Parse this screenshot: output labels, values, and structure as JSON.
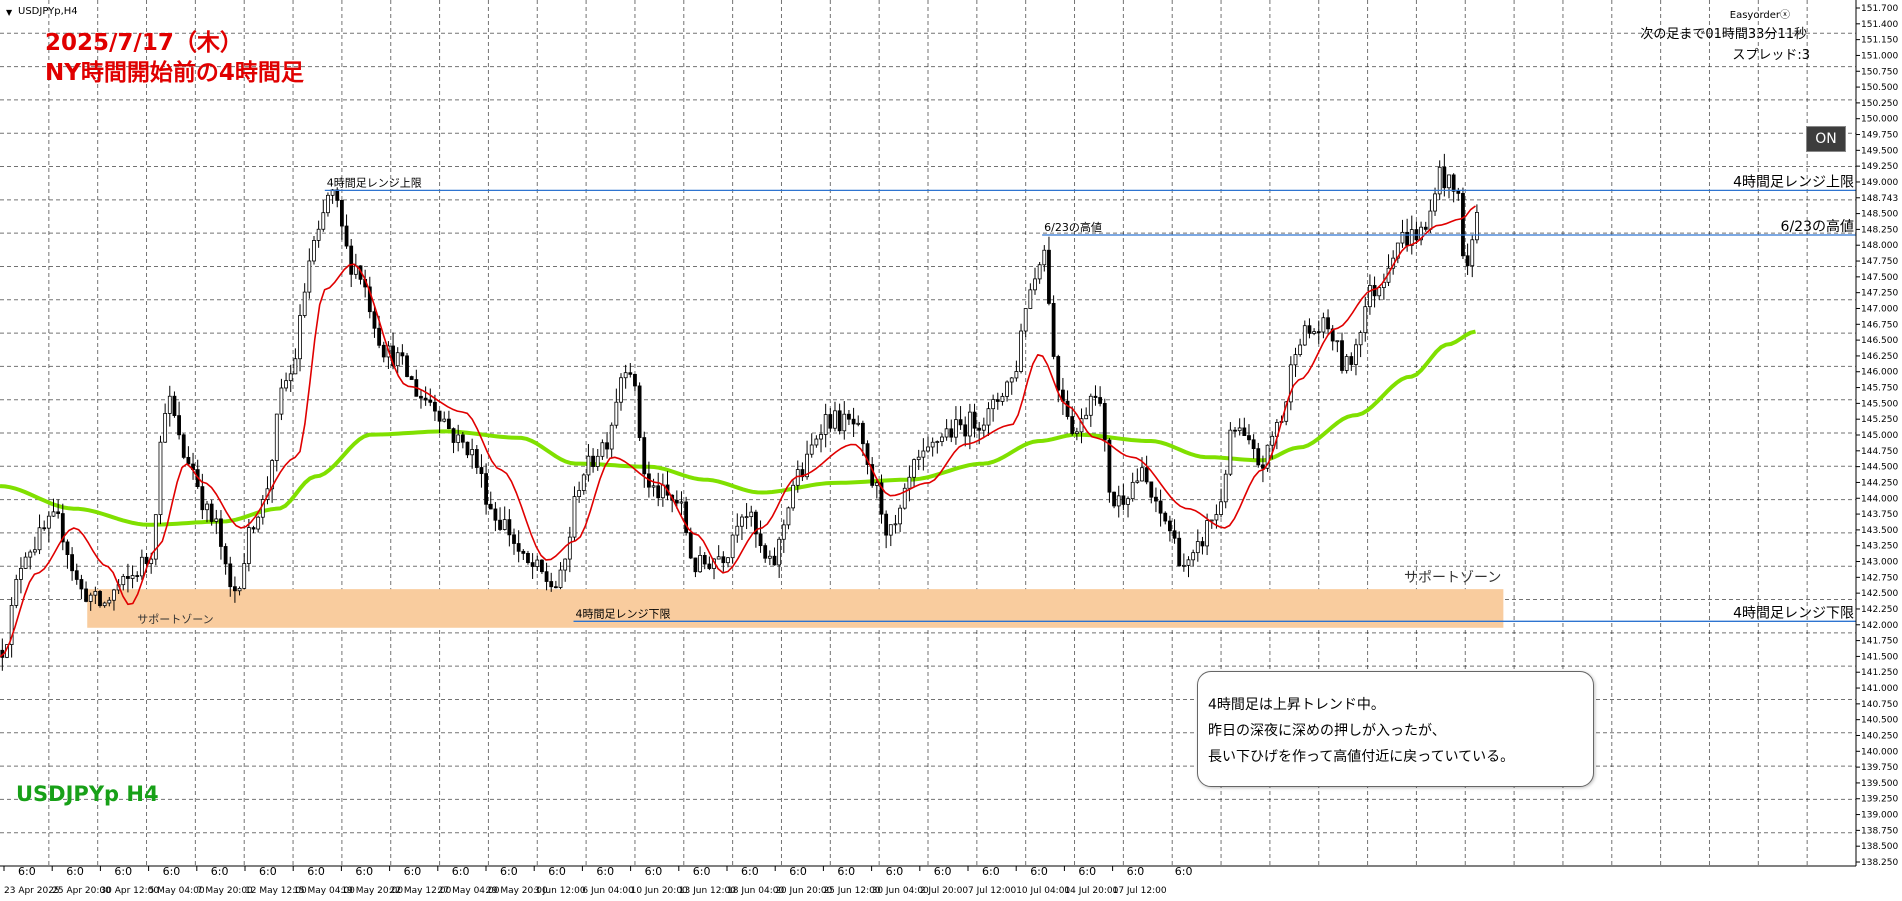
{
  "symbol_label": "USDJPYp,H4",
  "symbol_big": "USDJPYp H4",
  "title": {
    "line1": "2025/7/17（木）",
    "line2": "NY時間開始前の4時間足"
  },
  "easyorder_label": "Easyorderⓧ",
  "countdown_text": "次の足まで01時間33分11秒",
  "spread_text": "スプレッド:3",
  "on_button_label": "ON",
  "comment": {
    "lines": [
      "4時間足は上昇トレンド中。",
      "昨日の深夜に深めの押しが入ったが、",
      "長い下ひげを作って高値付近に戻っていている。"
    ]
  },
  "colors": {
    "background": "#ffffff",
    "grid": "#000000",
    "candle": "#000000",
    "ma_fast": "#e00000",
    "ma_slow": "#80e000",
    "hline": "#2e74d0",
    "zone": "#f9cc9e",
    "title": "#e00000",
    "symbol": "#18a018"
  },
  "chart_data": {
    "type": "candlestick",
    "symbol": "USDJPYp",
    "timeframe": "H4",
    "ylim": [
      138.25,
      151.7
    ],
    "x_tick_labels": [
      "23 Apr 2025",
      "25 Apr 20:00",
      "30 Apr 12:00",
      "5 May 04:00",
      "7 May 20:00",
      "12 May 12:00",
      "15 May 04:00",
      "19 May 20:00",
      "22 May 12:00",
      "27 May 04:00",
      "29 May 20:00",
      "3 Jun 12:00",
      "6 Jun 04:00",
      "10 Jun 20:00",
      "13 Jun 12:00",
      "18 Jun 04:00",
      "20 Jun 20:00",
      "25 Jun 12:00",
      "30 Jun 04:00",
      "2 Jul 20:00",
      "7 Jul 12:00",
      "10 Jul 04:00",
      "14 Jul 20:00",
      "17 Jul 12:00"
    ],
    "x_tick_hours": [
      "6:0",
      "6:0",
      "6:0",
      "6:0",
      "6:0",
      "6:0",
      "6:0",
      "6:0",
      "6:0",
      "6:0",
      "6:0",
      "6:0",
      "6:0",
      "6:0",
      "6:0",
      "6:0",
      "6:0",
      "6:0",
      "6:0",
      "6:0",
      "6:0",
      "6:0",
      "6:0",
      "6:0",
      "6:0"
    ],
    "y_tick_labels": [
      "151.700",
      "151.400",
      "151.150",
      "151.000",
      "150.750",
      "150.500",
      "150.250",
      "150.000",
      "149.750",
      "149.500",
      "149.250",
      "149.000",
      "148.743",
      "148.500",
      "148.250",
      "148.000",
      "147.750",
      "147.500",
      "147.250",
      "147.000",
      "146.750",
      "146.500",
      "146.250",
      "146.000",
      "145.750",
      "145.500",
      "145.250",
      "145.000",
      "144.750",
      "144.500",
      "144.250",
      "144.000",
      "143.750",
      "143.500",
      "143.250",
      "143.000",
      "142.750",
      "142.500",
      "142.250",
      "142.000",
      "141.750",
      "141.500",
      "141.250",
      "141.000",
      "140.750",
      "140.500",
      "140.250",
      "140.000",
      "139.750",
      "139.500",
      "139.250",
      "139.000",
      "138.750",
      "138.500",
      "138.250"
    ],
    "horizontal_lines": [
      {
        "label_left": "4時間足レンジ上限",
        "label_right": "4時間足レンジ上限",
        "price": 148.743,
        "x_start": 0.175
      },
      {
        "label_left": "6/23の高値",
        "label_right": "6/23の高値",
        "price": 148.05,
        "x_start": 0.5615
      },
      {
        "label_left": "4時間足レンジ下限",
        "label_right": "4時間足レンジ下限",
        "price": 142.05,
        "x_start": 0.309
      }
    ],
    "zones": [
      {
        "label_left": "サポートゾーン",
        "label_right": "サポートゾーン",
        "price_top": 142.55,
        "price_bottom": 141.95,
        "x_start": 0.047,
        "x_end": 0.81
      }
    ],
    "ma_fast": {
      "name": "",
      "anchors": [
        [
          0.0,
          141.5
        ],
        [
          0.02,
          142.8
        ],
        [
          0.04,
          143.5
        ],
        [
          0.058,
          142.9
        ],
        [
          0.07,
          142.3
        ],
        [
          0.085,
          143.2
        ],
        [
          0.1,
          144.5
        ],
        [
          0.11,
          144.2
        ],
        [
          0.13,
          143.5
        ],
        [
          0.16,
          144.6
        ],
        [
          0.175,
          147.2
        ],
        [
          0.19,
          147.6
        ],
        [
          0.22,
          145.7
        ],
        [
          0.25,
          145.3
        ],
        [
          0.27,
          144.4
        ],
        [
          0.295,
          143.0
        ],
        [
          0.31,
          143.3
        ],
        [
          0.33,
          144.6
        ],
        [
          0.355,
          144.2
        ],
        [
          0.375,
          143.4
        ],
        [
          0.39,
          142.8
        ],
        [
          0.41,
          143.5
        ],
        [
          0.43,
          144.3
        ],
        [
          0.46,
          144.8
        ],
        [
          0.48,
          144.0
        ],
        [
          0.5,
          144.2
        ],
        [
          0.52,
          144.8
        ],
        [
          0.545,
          145.1
        ],
        [
          0.56,
          146.2
        ],
        [
          0.575,
          145.4
        ],
        [
          0.59,
          144.9
        ],
        [
          0.61,
          144.6
        ],
        [
          0.64,
          143.8
        ],
        [
          0.66,
          143.5
        ],
        [
          0.68,
          144.4
        ],
        [
          0.7,
          145.8
        ],
        [
          0.72,
          146.6
        ],
        [
          0.74,
          147.2
        ],
        [
          0.76,
          147.9
        ],
        [
          0.775,
          148.2
        ],
        [
          0.7875,
          148.3
        ],
        [
          0.795,
          148.5
        ]
      ]
    },
    "ma_slow": {
      "name": "",
      "anchors": [
        [
          0.0,
          144.15
        ],
        [
          0.04,
          143.8
        ],
        [
          0.08,
          143.55
        ],
        [
          0.12,
          143.6
        ],
        [
          0.15,
          143.8
        ],
        [
          0.17,
          144.3
        ],
        [
          0.2,
          144.95
        ],
        [
          0.24,
          145.0
        ],
        [
          0.28,
          144.9
        ],
        [
          0.31,
          144.5
        ],
        [
          0.35,
          144.45
        ],
        [
          0.38,
          144.25
        ],
        [
          0.41,
          144.05
        ],
        [
          0.45,
          144.2
        ],
        [
          0.49,
          144.25
        ],
        [
          0.53,
          144.5
        ],
        [
          0.56,
          144.85
        ],
        [
          0.58,
          144.95
        ],
        [
          0.62,
          144.85
        ],
        [
          0.65,
          144.6
        ],
        [
          0.68,
          144.55
        ],
        [
          0.7,
          144.75
        ],
        [
          0.73,
          145.25
        ],
        [
          0.76,
          145.85
        ],
        [
          0.78,
          146.35
        ],
        [
          0.795,
          146.55
        ]
      ]
    },
    "price_path": [
      [
        0.0,
        141.6
      ],
      [
        0.015,
        143.2
      ],
      [
        0.03,
        143.6
      ],
      [
        0.045,
        142.5
      ],
      [
        0.055,
        142.3
      ],
      [
        0.065,
        142.6
      ],
      [
        0.08,
        143.0
      ],
      [
        0.09,
        145.5
      ],
      [
        0.1,
        144.6
      ],
      [
        0.115,
        143.6
      ],
      [
        0.125,
        142.5
      ],
      [
        0.14,
        143.8
      ],
      [
        0.155,
        145.8
      ],
      [
        0.17,
        147.9
      ],
      [
        0.178,
        148.7
      ],
      [
        0.19,
        147.6
      ],
      [
        0.21,
        146.2
      ],
      [
        0.23,
        145.5
      ],
      [
        0.25,
        144.8
      ],
      [
        0.27,
        143.6
      ],
      [
        0.285,
        142.9
      ],
      [
        0.3,
        142.6
      ],
      [
        0.315,
        144.4
      ],
      [
        0.325,
        144.8
      ],
      [
        0.338,
        146.1
      ],
      [
        0.35,
        144.1
      ],
      [
        0.365,
        143.9
      ],
      [
        0.375,
        142.9
      ],
      [
        0.39,
        143.1
      ],
      [
        0.4,
        143.8
      ],
      [
        0.415,
        142.9
      ],
      [
        0.43,
        144.3
      ],
      [
        0.445,
        145.2
      ],
      [
        0.46,
        145.1
      ],
      [
        0.47,
        144.2
      ],
      [
        0.48,
        143.4
      ],
      [
        0.495,
        144.5
      ],
      [
        0.51,
        145.0
      ],
      [
        0.53,
        145.2
      ],
      [
        0.545,
        145.8
      ],
      [
        0.555,
        147.2
      ],
      [
        0.562,
        147.85
      ],
      [
        0.57,
        145.7
      ],
      [
        0.58,
        145.0
      ],
      [
        0.59,
        145.7
      ],
      [
        0.6,
        143.9
      ],
      [
        0.615,
        144.3
      ],
      [
        0.625,
        143.7
      ],
      [
        0.64,
        142.9
      ],
      [
        0.655,
        143.7
      ],
      [
        0.665,
        145.0
      ],
      [
        0.68,
        144.5
      ],
      [
        0.69,
        145.2
      ],
      [
        0.7,
        146.5
      ],
      [
        0.715,
        146.6
      ],
      [
        0.725,
        146.0
      ],
      [
        0.74,
        147.2
      ],
      [
        0.755,
        148.0
      ],
      [
        0.768,
        148.1
      ],
      [
        0.775,
        149.0
      ],
      [
        0.785,
        148.7
      ],
      [
        0.79,
        147.5
      ],
      [
        0.797,
        148.5
      ]
    ],
    "vertical_grid_count": 38,
    "horizontal_grid_count": 26
  }
}
